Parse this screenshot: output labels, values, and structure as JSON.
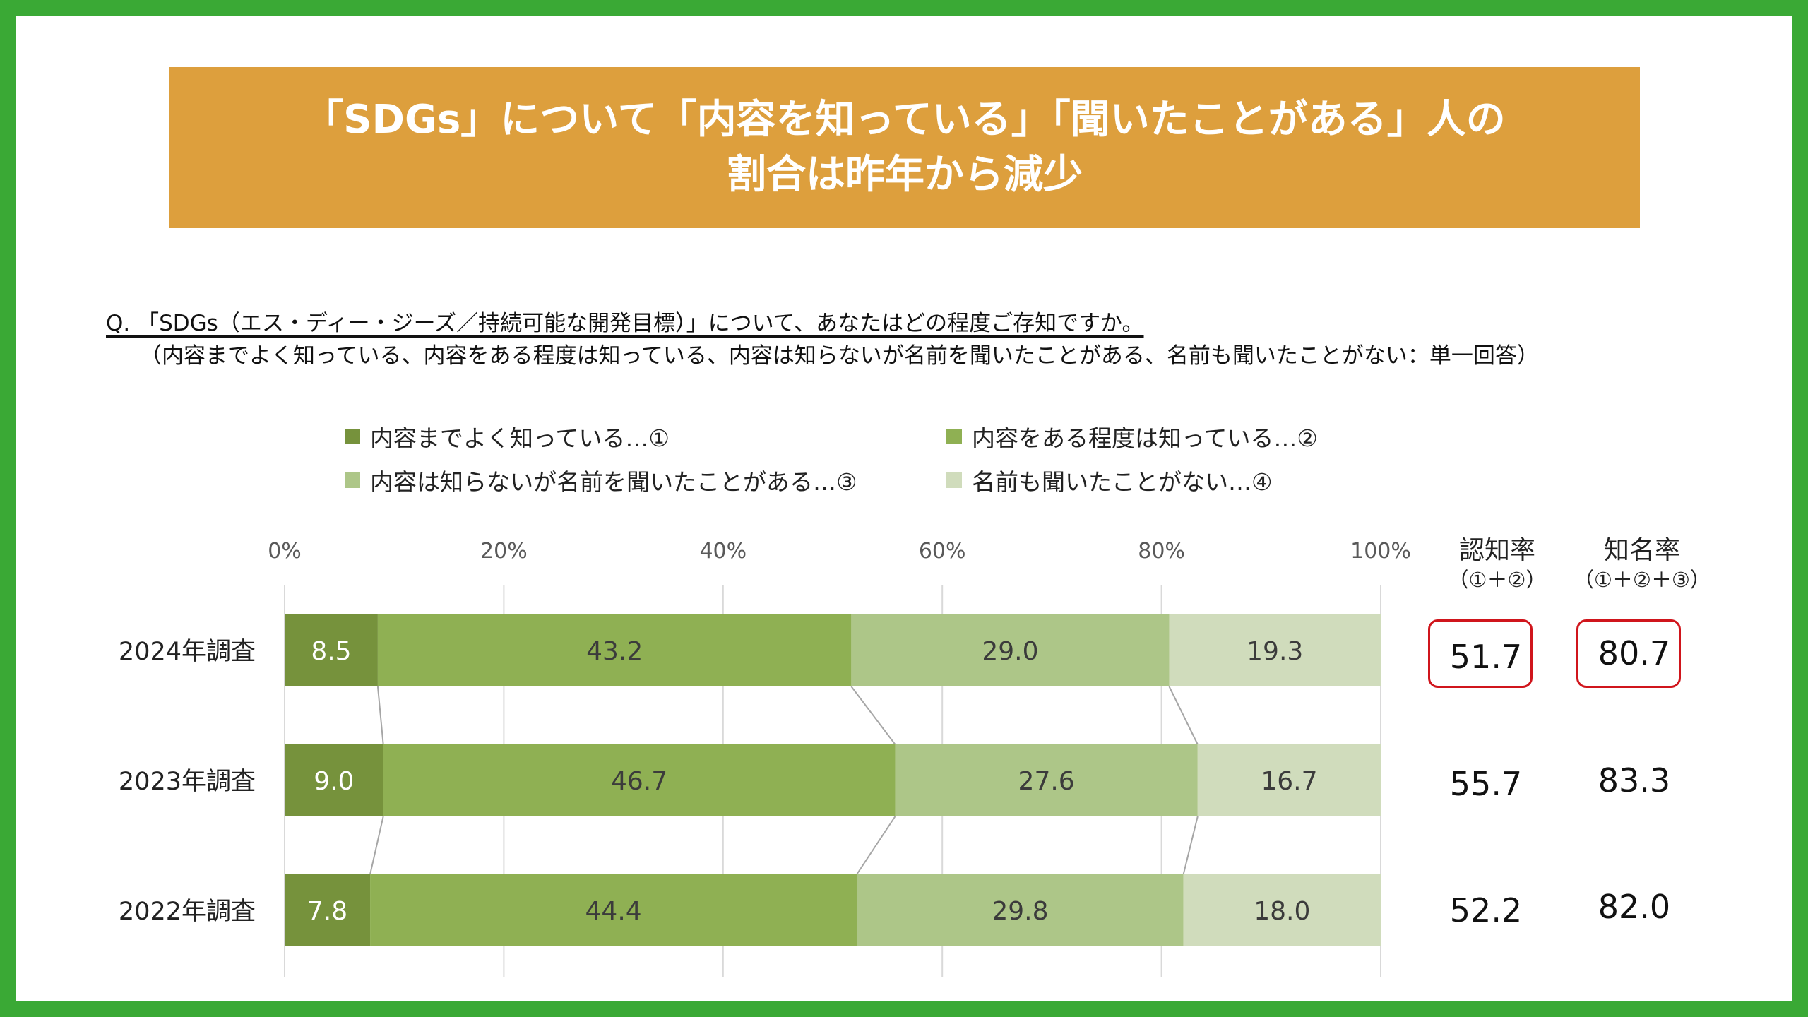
{
  "banner": {
    "line1": "「SDGs」について「内容を知っている」「聞いたことがある」人の",
    "line2": "割合は昨年から減少"
  },
  "question": {
    "line1": "Q. 「SDGs（エス・ディー・ジーズ／持続可能な開発目標）」について、あなたはどの程度ご存知ですか。",
    "line2": "（内容までよく知っている、内容をある程度は知っている、内容は知らないが名前を聞いたことがある、名前も聞いたことがない：単一回答）"
  },
  "colors": {
    "frame": "#3aa935",
    "banner": "#dd9f3d",
    "series": [
      "#76923c",
      "#8fb053",
      "#adc688",
      "#d0dcbc"
    ],
    "highlight_box": "#d0151c"
  },
  "metrics": {
    "awareness_label": "認知率",
    "awareness_sub": "（①＋②）",
    "recognition_label": "知名率",
    "recognition_sub": "（①＋②＋③）",
    "rows": [
      {
        "awareness": "51.7",
        "recognition": "80.7",
        "highlight": true
      },
      {
        "awareness": "55.7",
        "recognition": "83.3",
        "highlight": false
      },
      {
        "awareness": "52.2",
        "recognition": "82.0",
        "highlight": false
      }
    ]
  },
  "chart_data": {
    "type": "bar",
    "orientation": "horizontal",
    "stacked": true,
    "percent_axis": true,
    "categories": [
      "2024年調査",
      "2023年調査",
      "2022年調査"
    ],
    "series": [
      {
        "name": "内容までよく知っている…①",
        "values": [
          8.5,
          9.0,
          7.8
        ]
      },
      {
        "name": "内容をある程度は知っている…②",
        "values": [
          43.2,
          46.7,
          44.4
        ]
      },
      {
        "name": "内容は知らないが名前を聞いたことがある…③",
        "values": [
          29.0,
          27.6,
          29.8
        ]
      },
      {
        "name": "名前も聞いたことがない…④",
        "values": [
          19.3,
          16.7,
          18.0
        ]
      }
    ],
    "xlim": [
      0,
      100
    ],
    "xticks": [
      "0%",
      "20%",
      "40%",
      "60%",
      "80%",
      "100%"
    ],
    "grid": true,
    "legend_position": "top",
    "series_lines": true
  }
}
